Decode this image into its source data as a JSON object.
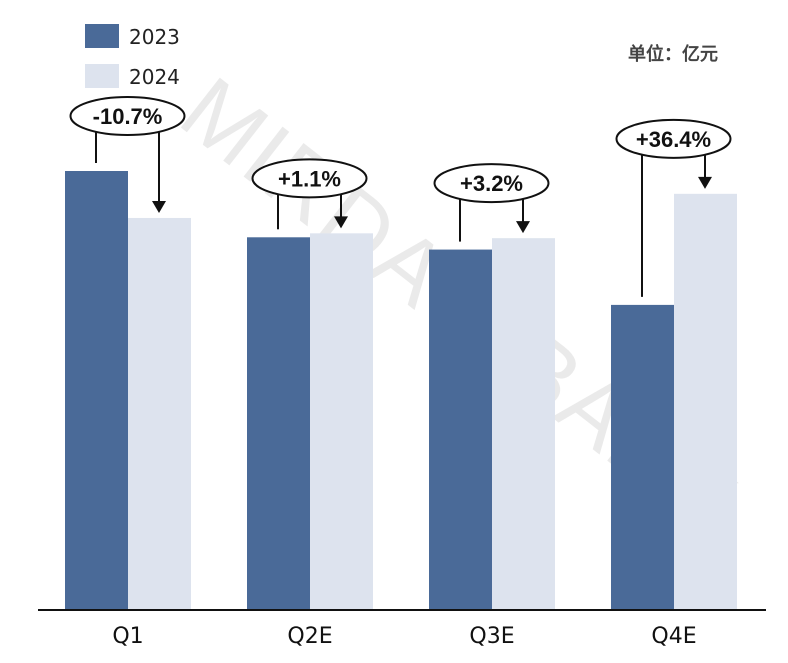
{
  "unit_label": "单位：亿元",
  "watermark": "MIRDATABANK",
  "colors": {
    "s2023": "#4a6a98",
    "s2024": "#dde3ee"
  },
  "chart_data": {
    "type": "bar",
    "categories": [
      "Q1",
      "Q2E",
      "Q3E",
      "Q4E"
    ],
    "series": [
      {
        "name": "2023",
        "values": [
          100,
          84.9,
          82.1,
          69.5
        ]
      },
      {
        "name": "2024",
        "values": [
          89.3,
          85.8,
          84.7,
          94.8
        ]
      }
    ],
    "changes": [
      "-10.7%",
      "+1.1%",
      "+3.2%",
      "+36.4%"
    ],
    "ylim": [
      0,
      100
    ],
    "grid": false,
    "legend_position": "top-left"
  }
}
